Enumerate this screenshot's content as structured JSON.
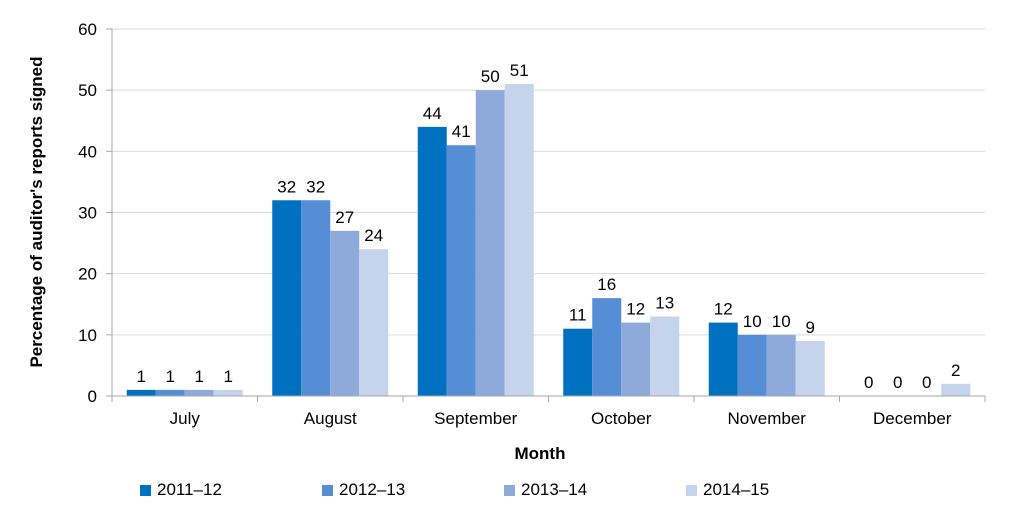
{
  "chart_data": {
    "type": "bar",
    "title": "",
    "xlabel": "Month",
    "ylabel": "Percentage of auditor's reports signed",
    "ylim": [
      0,
      60
    ],
    "yticks": [
      0,
      10,
      20,
      30,
      40,
      50,
      60
    ],
    "grid": true,
    "legend_position": "bottom",
    "categories": [
      "July",
      "August",
      "September",
      "October",
      "November",
      "December"
    ],
    "series": [
      {
        "name": "2011–12",
        "color": "#0070c0",
        "values": [
          1,
          32,
          44,
          11,
          12,
          0
        ]
      },
      {
        "name": "2012–13",
        "color": "#558ed5",
        "values": [
          1,
          32,
          41,
          16,
          10,
          0
        ]
      },
      {
        "name": "2013–14",
        "color": "#8eaadb",
        "values": [
          1,
          27,
          50,
          12,
          10,
          0
        ]
      },
      {
        "name": "2014–15",
        "color": "#c5d3ec",
        "values": [
          1,
          24,
          51,
          13,
          9,
          2
        ]
      }
    ]
  }
}
